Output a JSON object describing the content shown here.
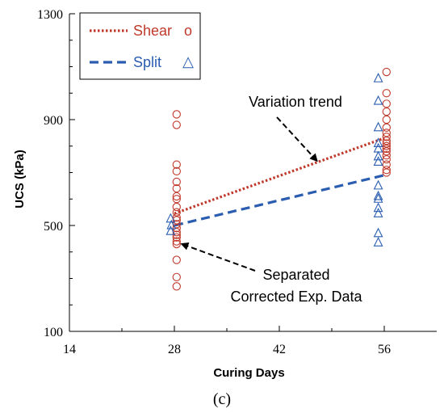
{
  "chart_data": {
    "type": "scatter",
    "xlabel": "Curing Days",
    "ylabel": "UCS (kPa)",
    "xlim": [
      14,
      63
    ],
    "ylim": [
      100,
      1300
    ],
    "x_ticks": [
      14,
      28,
      42,
      56
    ],
    "y_ticks": [
      100,
      500,
      900,
      1300
    ],
    "x_tick_labels": [
      "14",
      "28",
      "42",
      "56"
    ],
    "y_tick_labels": [
      "100",
      "500",
      "900",
      "1300"
    ],
    "legend_placement": "top-left",
    "panel_label": "(c)",
    "series": [
      {
        "name": "Shear",
        "marker_symbol": "o",
        "marker": "circle",
        "color": "#c0392b",
        "points": [
          [
            28.3,
            920
          ],
          [
            28.3,
            880
          ],
          [
            28.3,
            730
          ],
          [
            28.3,
            705
          ],
          [
            28.3,
            665
          ],
          [
            28.3,
            640
          ],
          [
            28.3,
            610
          ],
          [
            28.3,
            600
          ],
          [
            28.3,
            570
          ],
          [
            28.3,
            550
          ],
          [
            28.3,
            530
          ],
          [
            28.3,
            520
          ],
          [
            28.3,
            505
          ],
          [
            28.3,
            490
          ],
          [
            28.3,
            475
          ],
          [
            28.3,
            465
          ],
          [
            28.3,
            455
          ],
          [
            28.3,
            440
          ],
          [
            28.3,
            430
          ],
          [
            28.3,
            370
          ],
          [
            28.3,
            305
          ],
          [
            28.3,
            270
          ],
          [
            56.3,
            1080
          ],
          [
            56.3,
            1000
          ],
          [
            56.3,
            960
          ],
          [
            56.3,
            930
          ],
          [
            56.3,
            900
          ],
          [
            56.3,
            870
          ],
          [
            56.3,
            850
          ],
          [
            56.3,
            835
          ],
          [
            56.3,
            820
          ],
          [
            56.3,
            810
          ],
          [
            56.3,
            800
          ],
          [
            56.3,
            790
          ],
          [
            56.3,
            780
          ],
          [
            56.3,
            765
          ],
          [
            56.3,
            750
          ],
          [
            56.3,
            730
          ],
          [
            56.3,
            710
          ],
          [
            56.3,
            700
          ]
        ]
      },
      {
        "name": "Split",
        "marker_symbol": "△",
        "marker": "triangle",
        "color": "#2a5db0",
        "points": [
          [
            27.5,
            525
          ],
          [
            27.6,
            500
          ],
          [
            27.5,
            478
          ],
          [
            55.2,
            1055
          ],
          [
            55.2,
            970
          ],
          [
            55.2,
            870
          ],
          [
            55.2,
            810
          ],
          [
            55.2,
            790
          ],
          [
            55.2,
            760
          ],
          [
            55.2,
            740
          ],
          [
            55.2,
            650
          ],
          [
            55.2,
            610
          ],
          [
            55.2,
            600
          ],
          [
            55.2,
            565
          ],
          [
            55.2,
            545
          ],
          [
            55.2,
            470
          ],
          [
            55.2,
            435
          ]
        ]
      }
    ],
    "trend_lines": [
      {
        "name": "Shear",
        "style": "dotted",
        "color": "#c0392b",
        "x": [
          28,
          56
        ],
        "y": [
          545,
          830
        ]
      },
      {
        "name": "Split",
        "style": "dashed",
        "color": "#2a5db0",
        "x": [
          28,
          56
        ],
        "y": [
          500,
          690
        ]
      }
    ],
    "annotations": [
      {
        "lines": [
          "Variation trend"
        ],
        "target": [
          47,
          745
        ]
      },
      {
        "lines": [
          "Separated",
          "Corrected Exp. Data"
        ],
        "target": [
          29,
          430
        ]
      }
    ]
  }
}
